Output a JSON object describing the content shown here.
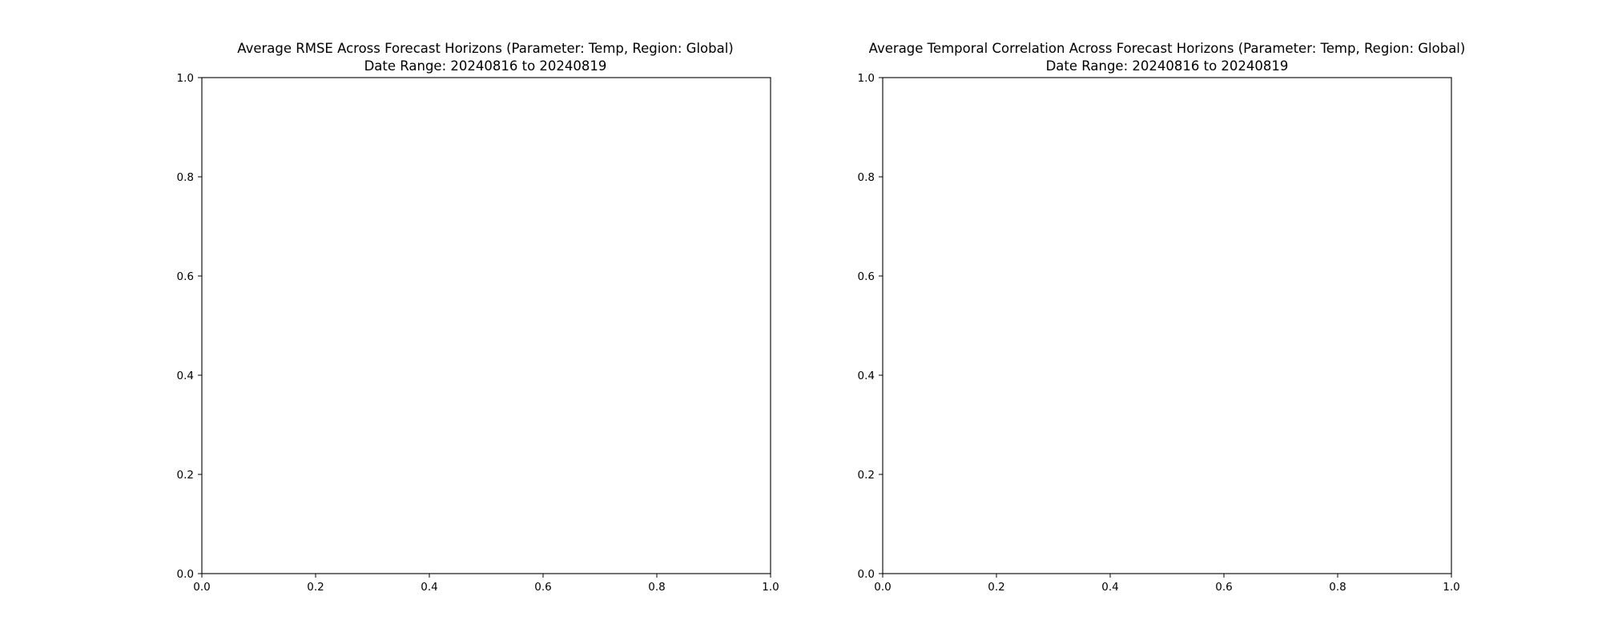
{
  "chart_data": [
    {
      "type": "line",
      "title": "Average RMSE Across Forecast Horizons (Parameter: Temp, Region: Global)",
      "subtitle": "Date Range: 20240816 to 20240819",
      "xlabel": "",
      "ylabel": "",
      "xlim": [
        0.0,
        1.0
      ],
      "ylim": [
        0.0,
        1.0
      ],
      "xticks": [
        "0.0",
        "0.2",
        "0.4",
        "0.6",
        "0.8",
        "1.0"
      ],
      "yticks": [
        "0.0",
        "0.2",
        "0.4",
        "0.6",
        "0.8",
        "1.0"
      ],
      "grid": false,
      "series": []
    },
    {
      "type": "line",
      "title": "Average Temporal Correlation Across Forecast Horizons (Parameter: Temp, Region: Global)",
      "subtitle": "Date Range: 20240816 to 20240819",
      "xlabel": "",
      "ylabel": "",
      "xlim": [
        0.0,
        1.0
      ],
      "ylim": [
        0.0,
        1.0
      ],
      "xticks": [
        "0.0",
        "0.2",
        "0.4",
        "0.6",
        "0.8",
        "1.0"
      ],
      "yticks": [
        "0.0",
        "0.2",
        "0.4",
        "0.6",
        "0.8",
        "1.0"
      ],
      "grid": false,
      "series": []
    }
  ]
}
